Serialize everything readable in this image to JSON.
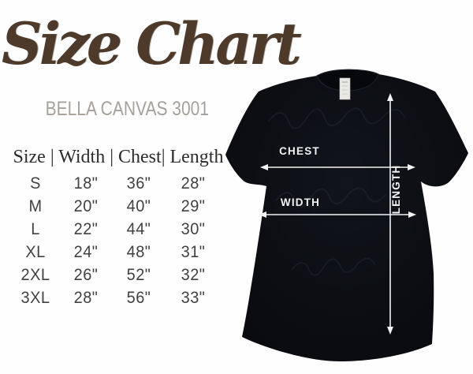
{
  "title": "Size Chart",
  "subtitle": "BELLA CANVAS 3001",
  "size_table": {
    "header": "Size | Width | Chest| Length",
    "columns": [
      "Size",
      "Width",
      "Chest",
      "Length"
    ],
    "rows": [
      {
        "size": "S",
        "width": "18\"",
        "chest": "36\"",
        "length": "28\""
      },
      {
        "size": "M",
        "width": "20\"",
        "chest": "40\"",
        "length": "29\""
      },
      {
        "size": "L",
        "width": "22\"",
        "chest": "44\"",
        "length": "30\""
      },
      {
        "size": "XL",
        "width": "24\"",
        "chest": "48\"",
        "length": "31\""
      },
      {
        "size": "2XL",
        "width": "26\"",
        "chest": "52\"",
        "length": "32\""
      },
      {
        "size": "3XL",
        "width": "28\"",
        "chest": "56\"",
        "length": "33\""
      }
    ]
  },
  "diagram": {
    "chest_label": "CHEST",
    "width_label": "WIDTH",
    "length_label": "LENGTH"
  },
  "colors": {
    "title_brown": "#4d3a2a",
    "subtitle_gray": "#a6a09a",
    "table_text": "#414141",
    "shirt_black": "#0c0e13",
    "arrow_white": "#f2f2f2",
    "background": "#fefefe"
  }
}
